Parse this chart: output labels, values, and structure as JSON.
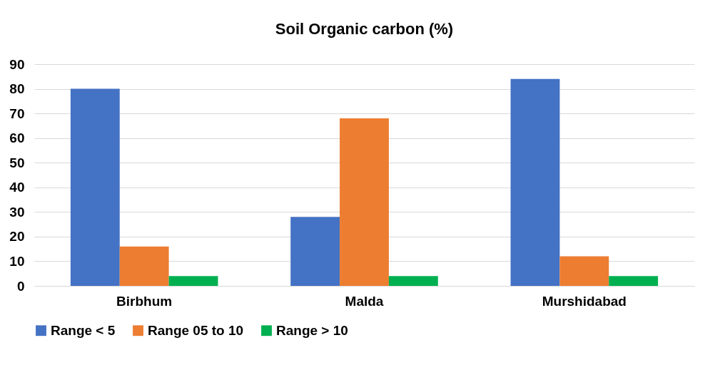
{
  "chart_data": {
    "type": "bar",
    "title": "Soil Organic carbon (%)",
    "categories": [
      "Birbhum",
      "Malda",
      "Murshidabad"
    ],
    "series": [
      {
        "name": "Range < 5",
        "color": "#4472c4",
        "values": [
          80,
          28,
          84
        ]
      },
      {
        "name": "Range 05 to 10",
        "color": "#ed7d31",
        "values": [
          16,
          68,
          12
        ]
      },
      {
        "name": "Range > 10",
        "color": "#00b050",
        "values": [
          4,
          4,
          4
        ]
      }
    ],
    "ylim": [
      0,
      90
    ],
    "yticks": [
      0,
      10,
      20,
      30,
      40,
      50,
      60,
      70,
      80,
      90
    ],
    "grid": "y",
    "legend": "bottom"
  }
}
